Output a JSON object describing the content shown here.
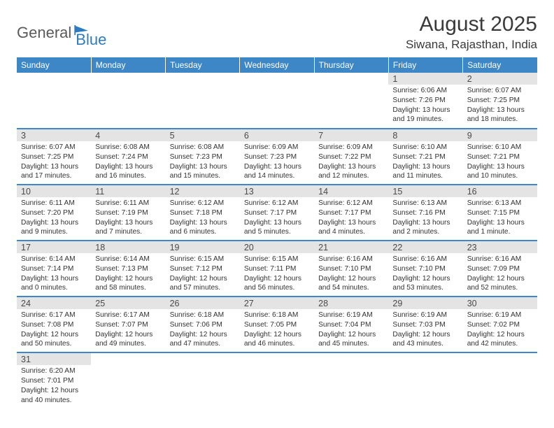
{
  "logo": {
    "part1": "General",
    "part2": "Blue"
  },
  "title": "August 2025",
  "location": "Siwana, Rajasthan, India",
  "colors": {
    "header_bg": "#3d87c7",
    "header_text": "#ffffff",
    "daynum_bg": "#e4e4e4",
    "row_divider": "#3d87c7",
    "body_text": "#323232",
    "logo_blue": "#2f7bbf",
    "logo_gray": "#5a5a5a"
  },
  "weekdays": [
    "Sunday",
    "Monday",
    "Tuesday",
    "Wednesday",
    "Thursday",
    "Friday",
    "Saturday"
  ],
  "weeks": [
    [
      null,
      null,
      null,
      null,
      null,
      {
        "n": "1",
        "sr": "6:06 AM",
        "ss": "7:26 PM",
        "dl": "13 hours and 19 minutes."
      },
      {
        "n": "2",
        "sr": "6:07 AM",
        "ss": "7:25 PM",
        "dl": "13 hours and 18 minutes."
      }
    ],
    [
      {
        "n": "3",
        "sr": "6:07 AM",
        "ss": "7:25 PM",
        "dl": "13 hours and 17 minutes."
      },
      {
        "n": "4",
        "sr": "6:08 AM",
        "ss": "7:24 PM",
        "dl": "13 hours and 16 minutes."
      },
      {
        "n": "5",
        "sr": "6:08 AM",
        "ss": "7:23 PM",
        "dl": "13 hours and 15 minutes."
      },
      {
        "n": "6",
        "sr": "6:09 AM",
        "ss": "7:23 PM",
        "dl": "13 hours and 14 minutes."
      },
      {
        "n": "7",
        "sr": "6:09 AM",
        "ss": "7:22 PM",
        "dl": "13 hours and 12 minutes."
      },
      {
        "n": "8",
        "sr": "6:10 AM",
        "ss": "7:21 PM",
        "dl": "13 hours and 11 minutes."
      },
      {
        "n": "9",
        "sr": "6:10 AM",
        "ss": "7:21 PM",
        "dl": "13 hours and 10 minutes."
      }
    ],
    [
      {
        "n": "10",
        "sr": "6:11 AM",
        "ss": "7:20 PM",
        "dl": "13 hours and 9 minutes."
      },
      {
        "n": "11",
        "sr": "6:11 AM",
        "ss": "7:19 PM",
        "dl": "13 hours and 7 minutes."
      },
      {
        "n": "12",
        "sr": "6:12 AM",
        "ss": "7:18 PM",
        "dl": "13 hours and 6 minutes."
      },
      {
        "n": "13",
        "sr": "6:12 AM",
        "ss": "7:17 PM",
        "dl": "13 hours and 5 minutes."
      },
      {
        "n": "14",
        "sr": "6:12 AM",
        "ss": "7:17 PM",
        "dl": "13 hours and 4 minutes."
      },
      {
        "n": "15",
        "sr": "6:13 AM",
        "ss": "7:16 PM",
        "dl": "13 hours and 2 minutes."
      },
      {
        "n": "16",
        "sr": "6:13 AM",
        "ss": "7:15 PM",
        "dl": "13 hours and 1 minute."
      }
    ],
    [
      {
        "n": "17",
        "sr": "6:14 AM",
        "ss": "7:14 PM",
        "dl": "13 hours and 0 minutes."
      },
      {
        "n": "18",
        "sr": "6:14 AM",
        "ss": "7:13 PM",
        "dl": "12 hours and 58 minutes."
      },
      {
        "n": "19",
        "sr": "6:15 AM",
        "ss": "7:12 PM",
        "dl": "12 hours and 57 minutes."
      },
      {
        "n": "20",
        "sr": "6:15 AM",
        "ss": "7:11 PM",
        "dl": "12 hours and 56 minutes."
      },
      {
        "n": "21",
        "sr": "6:16 AM",
        "ss": "7:10 PM",
        "dl": "12 hours and 54 minutes."
      },
      {
        "n": "22",
        "sr": "6:16 AM",
        "ss": "7:10 PM",
        "dl": "12 hours and 53 minutes."
      },
      {
        "n": "23",
        "sr": "6:16 AM",
        "ss": "7:09 PM",
        "dl": "12 hours and 52 minutes."
      }
    ],
    [
      {
        "n": "24",
        "sr": "6:17 AM",
        "ss": "7:08 PM",
        "dl": "12 hours and 50 minutes."
      },
      {
        "n": "25",
        "sr": "6:17 AM",
        "ss": "7:07 PM",
        "dl": "12 hours and 49 minutes."
      },
      {
        "n": "26",
        "sr": "6:18 AM",
        "ss": "7:06 PM",
        "dl": "12 hours and 47 minutes."
      },
      {
        "n": "27",
        "sr": "6:18 AM",
        "ss": "7:05 PM",
        "dl": "12 hours and 46 minutes."
      },
      {
        "n": "28",
        "sr": "6:19 AM",
        "ss": "7:04 PM",
        "dl": "12 hours and 45 minutes."
      },
      {
        "n": "29",
        "sr": "6:19 AM",
        "ss": "7:03 PM",
        "dl": "12 hours and 43 minutes."
      },
      {
        "n": "30",
        "sr": "6:19 AM",
        "ss": "7:02 PM",
        "dl": "12 hours and 42 minutes."
      }
    ],
    [
      {
        "n": "31",
        "sr": "6:20 AM",
        "ss": "7:01 PM",
        "dl": "12 hours and 40 minutes."
      },
      null,
      null,
      null,
      null,
      null,
      null
    ]
  ],
  "labels": {
    "sunrise": "Sunrise: ",
    "sunset": "Sunset: ",
    "daylight": "Daylight: "
  }
}
